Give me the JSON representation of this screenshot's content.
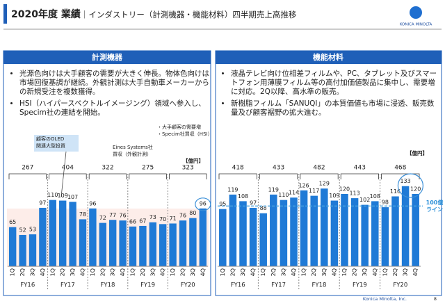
{
  "header": {
    "title_bold": "2020年度 業績",
    "title_rest": "｜インダストリー（計測機器・機能材料）四半期売上高推移",
    "logo": "KONICA MINOLTA"
  },
  "panels": [
    {
      "title": "計測機器",
      "bullets": [
        "光源色向けは大手顧客の需要が大きく伸長。物体色向けは市場回復基調が継続。外観計測は大手自動車メーカーからの新規受注を複数獲得。",
        "HSI（ハイパースペクトルイメージング）領域へ参入し、Specim社の連結を開始。"
      ]
    },
    {
      "title": "機能材料",
      "bullets": [
        "液晶テレビ向け位相差フィルムや、PC、タブレット及びスマートフォン用薄膜フィルム等の高付加価値製品に集中し、需要増に対応。2Q以降、高水準の販売。",
        "新樹脂フィルム「SANUQI」の本質価値も市場に浸透、販売数量及び顧客裾野の拡大進む。"
      ]
    }
  ],
  "chart_data": [
    {
      "type": "bar",
      "unit": "【億円】",
      "color": "#1f7ad6",
      "ylim": [
        0,
        150
      ],
      "categories": [
        "1Q",
        "2Q",
        "3Q",
        "4Q",
        "1Q",
        "2Q",
        "3Q",
        "4Q",
        "1Q",
        "2Q",
        "3Q",
        "4Q",
        "1Q",
        "2Q",
        "3Q",
        "4Q",
        "1Q",
        "2Q",
        "3Q",
        "4Q"
      ],
      "values": [
        65,
        52,
        53,
        97,
        110,
        109,
        107,
        78,
        96,
        72,
        77,
        76,
        66,
        67,
        73,
        70,
        71,
        76,
        80,
        96
      ],
      "groups": [
        "FY16",
        "FY17",
        "FY18",
        "FY19",
        "FY20"
      ],
      "group_totals": [
        267,
        404,
        322,
        275,
        323
      ],
      "annotations": [
        [
          "顧客のOLED",
          "関連大型投資"
        ],
        [
          "Eines Systems社",
          "買収（外観計測）"
        ],
        [
          "・大手顧客の需要増",
          "・Specim社買収（HSI）"
        ]
      ]
    },
    {
      "type": "bar",
      "unit": "【億円】",
      "color": "#1f7ad6",
      "ylim": [
        0,
        150
      ],
      "categories": [
        "1Q",
        "2Q",
        "3Q",
        "4Q",
        "1Q",
        "2Q",
        "3Q",
        "4Q",
        "1Q",
        "2Q",
        "3Q",
        "4Q",
        "1Q",
        "2Q",
        "3Q",
        "4Q",
        "1Q",
        "2Q",
        "3Q",
        "4Q"
      ],
      "values": [
        95,
        119,
        108,
        97,
        88,
        119,
        110,
        114,
        126,
        117,
        129,
        109,
        120,
        113,
        102,
        108,
        98,
        116,
        133,
        120
      ],
      "groups": [
        "FY16",
        "FY17",
        "FY18",
        "FY19",
        "FY20"
      ],
      "group_totals": [
        418,
        433,
        482,
        443,
        468
      ],
      "reference_line": {
        "value": 100,
        "label": [
          "100億",
          "ライン"
        ]
      }
    }
  ],
  "footer": {
    "company": "Konica Minolta, Inc.",
    "page": "8"
  }
}
